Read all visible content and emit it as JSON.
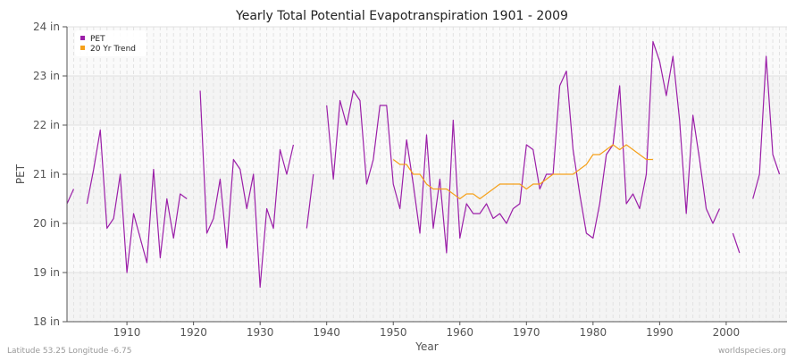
{
  "chart_data": {
    "type": "line",
    "title": "Yearly Total Potential Evapotranspiration 1901 - 2009",
    "xlabel": "Year",
    "ylabel": "PET",
    "xlim": [
      1901,
      2009
    ],
    "ylim": [
      18,
      24
    ],
    "x_ticks": [
      1910,
      1920,
      1930,
      1940,
      1950,
      1960,
      1970,
      1980,
      1990,
      2000
    ],
    "y_ticks": [
      {
        "value": 18,
        "label": "18 in"
      },
      {
        "value": 19,
        "label": "19 in"
      },
      {
        "value": 20,
        "label": "20 in"
      },
      {
        "value": 21,
        "label": "21 in"
      },
      {
        "value": 22,
        "label": "22 in"
      },
      {
        "value": 23,
        "label": "23 in"
      },
      {
        "value": 24,
        "label": "24 in"
      }
    ],
    "grid": true,
    "legend_position": "top-left",
    "series": [
      {
        "name": "PET",
        "color": "#9b1fa8",
        "start_year": 1901,
        "values": [
          20.4,
          20.7,
          null,
          20.4,
          21.1,
          21.9,
          19.9,
          20.1,
          21.0,
          19.0,
          20.2,
          19.7,
          19.2,
          21.1,
          19.3,
          20.5,
          19.7,
          20.6,
          20.5,
          null,
          22.7,
          19.8,
          20.1,
          20.9,
          19.5,
          21.3,
          21.1,
          20.3,
          21.0,
          18.7,
          20.3,
          19.9,
          21.5,
          21.0,
          21.6,
          null,
          19.9,
          21.0,
          null,
          22.4,
          20.9,
          22.5,
          22.0,
          22.7,
          22.5,
          20.8,
          21.3,
          22.4,
          22.4,
          20.8,
          20.3,
          21.7,
          20.8,
          19.8,
          21.8,
          19.9,
          20.9,
          19.4,
          22.1,
          19.7,
          20.4,
          20.2,
          20.2,
          20.4,
          20.1,
          20.2,
          20.0,
          20.3,
          20.4,
          21.6,
          21.5,
          20.7,
          21.0,
          21.0,
          22.8,
          23.1,
          21.5,
          20.6,
          19.8,
          19.7,
          20.4,
          21.4,
          21.6,
          22.8,
          20.4,
          20.6,
          20.3,
          21.0,
          23.7,
          23.3,
          22.6,
          23.4,
          22.1,
          20.2,
          22.2,
          21.3,
          20.3,
          20.0,
          20.3,
          null,
          19.8,
          19.4,
          null,
          20.5,
          21.0,
          23.4,
          21.4,
          21.0,
          null
        ]
      },
      {
        "name": "20 Yr Trend",
        "color": "#f5a01a",
        "start_year": 1950,
        "values": [
          21.3,
          21.2,
          21.2,
          21.0,
          21.0,
          20.8,
          20.7,
          20.7,
          20.7,
          20.6,
          20.5,
          20.6,
          20.6,
          20.5,
          20.6,
          20.7,
          20.8,
          20.8,
          20.8,
          20.8,
          20.7,
          20.8,
          20.8,
          20.9,
          21.0,
          21.0,
          21.0,
          21.0,
          21.1,
          21.2,
          21.4,
          21.4,
          21.5,
          21.6,
          21.5,
          21.6,
          21.5,
          21.4,
          21.3,
          21.3
        ]
      }
    ]
  },
  "footer": {
    "location": "Latitude 53.25 Longitude -6.75",
    "source": "worldspecies.org"
  }
}
